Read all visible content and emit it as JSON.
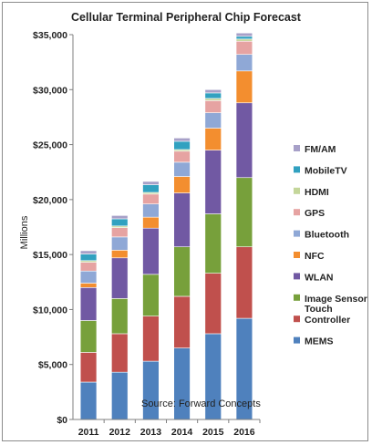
{
  "chart_data": {
    "type": "bar",
    "stacked": true,
    "title": "Cellular Terminal Peripheral Chip  Forecast",
    "ylabel": "Millions",
    "xlabel": "",
    "ylim": [
      0,
      35000
    ],
    "yticks": [
      "$0",
      "$5,000",
      "$10,000",
      "$15,000",
      "$20,000",
      "$25,000",
      "$30,000",
      "$35,000"
    ],
    "grid": false,
    "legend": "right",
    "source": "Source: Forward Concepts",
    "categories": [
      "2011",
      "2012",
      "2013",
      "2014",
      "2015",
      "2016"
    ],
    "series": [
      {
        "name": "MEMS",
        "color": "#4f81bd",
        "values": [
          3400,
          4300,
          5300,
          6500,
          7800,
          9200
        ]
      },
      {
        "name": "Touch Controller",
        "color": "#c0504d",
        "values": [
          2700,
          3500,
          4100,
          4700,
          5500,
          6500
        ]
      },
      {
        "name": "Image Sensor",
        "color": "#77a03b",
        "values": [
          2900,
          3200,
          3800,
          4500,
          5400,
          6300
        ]
      },
      {
        "name": "WLAN",
        "color": "#7159a3",
        "values": [
          3000,
          3700,
          4200,
          4900,
          5800,
          6800
        ]
      },
      {
        "name": "NFC",
        "color": "#f38e2f",
        "values": [
          400,
          700,
          1000,
          1500,
          2000,
          2900
        ]
      },
      {
        "name": "Bluetooth",
        "color": "#8fa8d6",
        "values": [
          1100,
          1200,
          1200,
          1300,
          1400,
          1500
        ]
      },
      {
        "name": "GPS",
        "color": "#e6a3a2",
        "values": [
          800,
          850,
          900,
          1000,
          1100,
          1200
        ]
      },
      {
        "name": "HDMI",
        "color": "#c4d69a",
        "values": [
          150,
          150,
          150,
          150,
          200,
          200
        ]
      },
      {
        "name": "MobileTV",
        "color": "#31a1c0",
        "values": [
          600,
          650,
          700,
          750,
          500,
          250
        ]
      },
      {
        "name": "FM/AM",
        "color": "#a7a0c8",
        "values": [
          300,
          300,
          300,
          300,
          300,
          300
        ]
      }
    ],
    "legend_order": [
      "FM/AM",
      "MobileTV",
      "HDMI",
      "GPS",
      "Bluetooth",
      "NFC",
      "WLAN",
      "Image Sensor",
      "Touch Controller",
      "MEMS"
    ]
  }
}
